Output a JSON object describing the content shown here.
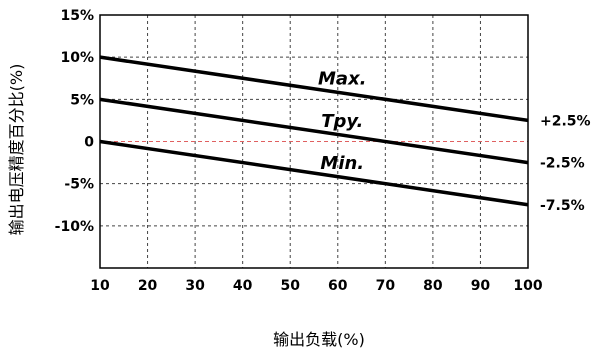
{
  "chart_data": {
    "type": "line",
    "xlabel": "输出负载(%)",
    "ylabel": "输出电压精度百分比(%)",
    "xlim": [
      10,
      100
    ],
    "ylim": [
      -15,
      15
    ],
    "x_ticks": [
      {
        "value": 10,
        "label": "10"
      },
      {
        "value": 20,
        "label": "20"
      },
      {
        "value": 30,
        "label": "30"
      },
      {
        "value": 40,
        "label": "40"
      },
      {
        "value": 50,
        "label": "50"
      },
      {
        "value": 60,
        "label": "60"
      },
      {
        "value": 70,
        "label": "70"
      },
      {
        "value": 80,
        "label": "80"
      },
      {
        "value": 90,
        "label": "90"
      },
      {
        "value": 100,
        "label": "100"
      }
    ],
    "y_ticks": [
      {
        "value": 15,
        "label": "15%"
      },
      {
        "value": 10,
        "label": "10%"
      },
      {
        "value": 5,
        "label": "5%"
      },
      {
        "value": 0,
        "label": "0"
      },
      {
        "value": -5,
        "label": "-5%"
      },
      {
        "value": -10,
        "label": "-10%"
      }
    ],
    "grid": true,
    "grid_style": "dashed",
    "zero_line_color": "#e06060",
    "series": [
      {
        "name": "Max.",
        "x": [
          10,
          100
        ],
        "y": [
          10,
          2.5
        ],
        "end_label": "+2.5%"
      },
      {
        "name": "Tpy.",
        "x": [
          10,
          100
        ],
        "y": [
          5,
          -2.5
        ],
        "end_label": "-2.5%"
      },
      {
        "name": "Min.",
        "x": [
          10,
          100
        ],
        "y": [
          0,
          -7.5
        ],
        "end_label": "-7.5%"
      }
    ]
  }
}
